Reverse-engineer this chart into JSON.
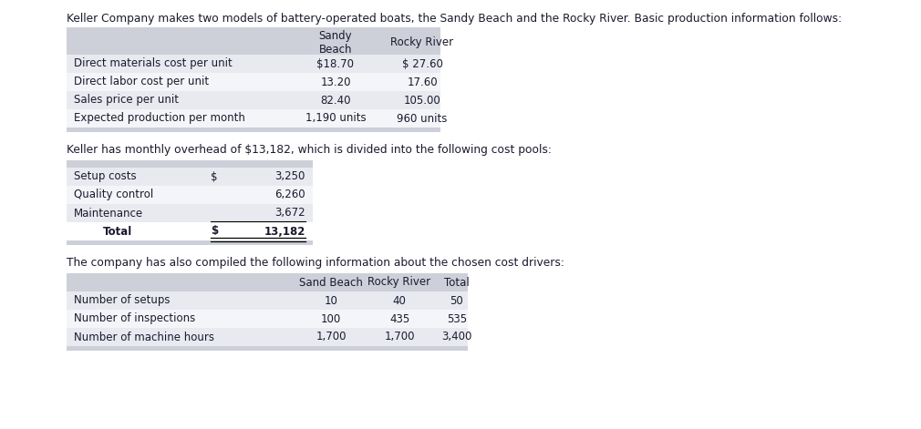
{
  "title": "Keller Company makes two models of battery-operated boats, the Sandy Beach and the Rocky River. Basic production information follows:",
  "title2": "Keller has monthly overhead of $13,182, which is divided into the following cost pools:",
  "title3": "The company has also compiled the following information about the chosen cost drivers:",
  "table1_header_col1": "Sandy\nBeach",
  "table1_header_col2": "Rocky River",
  "table1_rows": [
    [
      "Direct materials cost per unit",
      "$18.70",
      "$ 27.60"
    ],
    [
      "Direct labor cost per unit",
      "13.20",
      "17.60"
    ],
    [
      "Sales price per unit",
      "82.40",
      "105.00"
    ],
    [
      "Expected production per month",
      "1,190 units",
      "960 units"
    ]
  ],
  "table2_rows": [
    [
      "Setup costs",
      "$",
      "3,250"
    ],
    [
      "Quality control",
      "",
      "6,260"
    ],
    [
      "Maintenance",
      "",
      "3,672"
    ],
    [
      "Total",
      "$",
      "13,182"
    ]
  ],
  "table3_header": [
    "",
    "Sand Beach",
    "Rocky River",
    "Total"
  ],
  "table3_rows": [
    [
      "Number of setups",
      "10",
      "40",
      "50"
    ],
    [
      "Number of inspections",
      "100",
      "435",
      "535"
    ],
    [
      "Number of machine hours",
      "1,700",
      "1,700",
      "3,400"
    ]
  ],
  "bg_color": "#ffffff",
  "header_bg": "#cdd0d9",
  "row_bg_odd": "#e8eaf0",
  "row_bg_even": "#f4f5f8",
  "text_color": "#1a1a2e",
  "font_size": 8.5,
  "title_font_size": 8.8
}
